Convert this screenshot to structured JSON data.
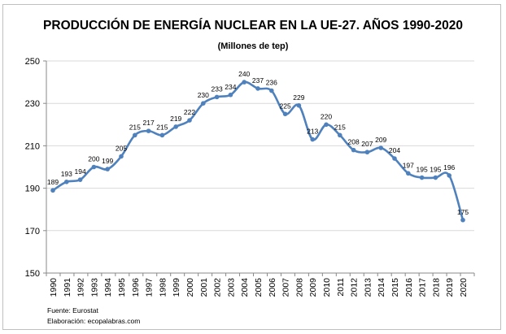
{
  "chart_data": {
    "type": "line",
    "title": "PRODUCCIÓN DE ENERGÍA NUCLEAR EN LA UE-27. AÑOS 1990-2020",
    "subtitle": "(Millones de tep)",
    "xlabel": "",
    "ylabel": "",
    "categories": [
      "1990",
      "1991",
      "1992",
      "1993",
      "1994",
      "1995",
      "1996",
      "1997",
      "1998",
      "1999",
      "2000",
      "2001",
      "2002",
      "2003",
      "2004",
      "2005",
      "2006",
      "2007",
      "2008",
      "2009",
      "2010",
      "2011",
      "2012",
      "2013",
      "2014",
      "2015",
      "2016",
      "2017",
      "2018",
      "2019",
      "2020"
    ],
    "values": [
      189,
      193,
      194,
      200,
      199,
      205,
      215,
      217,
      215,
      219,
      222,
      230,
      233,
      234,
      240,
      237,
      236,
      225,
      229,
      213,
      220,
      215,
      208,
      207,
      209,
      204,
      197,
      195,
      195,
      196,
      175
    ],
    "ylim": [
      150,
      250
    ],
    "yticks": [
      150,
      170,
      190,
      210,
      230,
      250
    ],
    "grid": true,
    "smoothed": true,
    "data_labels": true,
    "line_color": "#4f81bd",
    "grid_color": "#d9d9d9"
  },
  "footer": {
    "source": "Fuente: Eurostat",
    "credit": "Elaboración: ecopalabras.com"
  }
}
